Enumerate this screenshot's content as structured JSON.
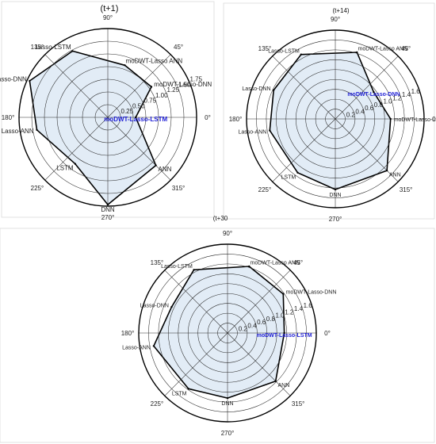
{
  "chart_data": [
    {
      "type": "radar",
      "title": "(t+1)",
      "highlight_category": "moDWT-Lasso-LSTM",
      "rmax": 1.75,
      "r_ticks": [
        0.25,
        0.5,
        0.75,
        1.0,
        1.25,
        1.5,
        1.75
      ],
      "r_tick_labels": [
        "0.25",
        "0.50",
        "0.75",
        "1.00",
        "1.25",
        "1.50",
        "1.75"
      ],
      "angle_ticks": [
        "0°",
        "45°",
        "90°",
        "135°",
        "180°",
        "225°",
        "270°",
        "315°"
      ],
      "categories": [
        "moDWT-Lasso-LSTM",
        "moDWT-Lasso-DNN",
        "moDWT-Lasso ANN",
        "Lasso-LSTM",
        "Lasso-DNN",
        "Lasso-ANN",
        "LSTM",
        "DNN",
        "ANN"
      ],
      "values": [
        0.55,
        1.05,
        1.08,
        1.48,
        1.7,
        1.42,
        1.12,
        1.72,
        1.34
      ],
      "grid": true,
      "legend": "none"
    },
    {
      "type": "radar",
      "title": "(t+14)",
      "highlight_category": "moDWT-Lasso-DNN",
      "rmax": 1.8,
      "r_ticks": [
        0.2,
        0.4,
        0.6,
        0.8,
        1.0,
        1.2,
        1.4,
        1.6,
        1.8
      ],
      "r_tick_labels": [
        "0.2",
        "0.4",
        "0.6",
        "0.8",
        "1.0",
        "1.2",
        "1.4",
        "1.6",
        ""
      ],
      "angle_ticks": [
        "0°",
        "45°",
        "90°",
        "135°",
        "180°",
        "225°",
        "270°",
        "315°"
      ],
      "categories": [
        "moDWT-Lasso-LSTM",
        "moDWT-Lasso-DNN",
        "moDWT-Lasso ANN",
        "Lasso-LSTM",
        "Lasso-DNN",
        "Lasso-ANN",
        "LSTM",
        "DNN",
        "ANN"
      ],
      "values": [
        1.12,
        0.95,
        1.42,
        1.48,
        1.38,
        1.35,
        1.33,
        1.43,
        1.48
      ],
      "grid": true,
      "legend": "none"
    },
    {
      "type": "radar",
      "title": "(t+30",
      "highlight_category": "moDWT-Lasso-LSTM",
      "rmax": 1.8,
      "r_ticks": [
        0.2,
        0.4,
        0.6,
        0.8,
        1.0,
        1.2,
        1.4,
        1.6,
        1.8
      ],
      "r_tick_labels": [
        "0.2",
        "0.4",
        "0.6",
        "0.8",
        "1.0",
        "1.2",
        "1.4",
        "1.6",
        ""
      ],
      "angle_ticks": [
        "0°",
        "45°",
        "90°",
        "135°",
        "180°",
        "225°",
        "270°",
        "315°"
      ],
      "categories": [
        "moDWT-Lasso-LSTM",
        "moDWT-Lasso-DNN",
        "moDWT-Lasso ANN",
        "Lasso-LSTM",
        "Lasso-DNN",
        "Lasso-ANN",
        "LSTM",
        "DNN",
        "ANN"
      ],
      "values": [
        1.15,
        1.38,
        1.42,
        1.45,
        1.25,
        1.52,
        1.38,
        1.32,
        1.38
      ],
      "grid": true,
      "legend": "none"
    }
  ]
}
